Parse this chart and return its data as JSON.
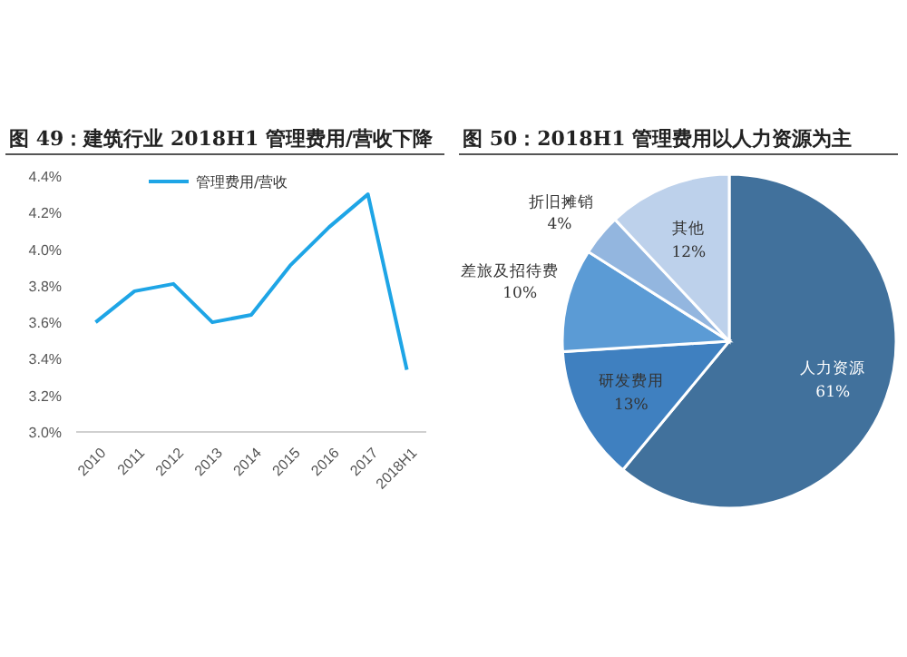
{
  "chart_data": [
    {
      "type": "line",
      "title": "图 49：建筑行业 2018H1 管理费用/营收下降",
      "categories": [
        "2010",
        "2011",
        "2012",
        "2013",
        "2014",
        "2015",
        "2016",
        "2017",
        "2018H1"
      ],
      "series": [
        {
          "name": "管理费用/营收",
          "color": "#1ea5e6",
          "values": [
            3.6,
            3.77,
            3.81,
            3.6,
            3.64,
            3.91,
            4.12,
            4.3,
            3.34
          ]
        }
      ],
      "ylim": [
        3.0,
        4.4
      ],
      "yticks": [
        {
          "value": 3.0,
          "label": "3.0%"
        },
        {
          "value": 3.2,
          "label": "3.2%"
        },
        {
          "value": 3.4,
          "label": "3.4%"
        },
        {
          "value": 3.6,
          "label": "3.6%"
        },
        {
          "value": 3.8,
          "label": "3.8%"
        },
        {
          "value": 4.0,
          "label": "4.0%"
        },
        {
          "value": 4.2,
          "label": "4.2%"
        },
        {
          "value": 4.4,
          "label": "4.4%"
        }
      ],
      "legend": "top",
      "marker": "none"
    },
    {
      "type": "pie",
      "title": "图 50：2018H1 管理费用以人力资源为主",
      "categories": [
        "人力资源",
        "研发费用",
        "差旅及招待费",
        "折旧摊销",
        "其他"
      ],
      "values": [
        61,
        13,
        10,
        4,
        12
      ],
      "colors": [
        "#41719c",
        "#3f80c0",
        "#5b9bd5",
        "#93b6df",
        "#bdd1eb"
      ],
      "value_labels": [
        "61%",
        "13%",
        "10%",
        "4%",
        "12%"
      ]
    }
  ]
}
